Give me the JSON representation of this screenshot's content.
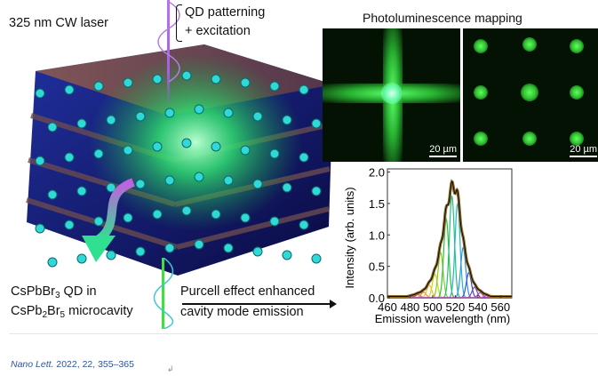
{
  "figure": {
    "laser_label": "325 nm CW laser",
    "qd_label_line1": "QD patterning",
    "qd_label_line2": "+ excitation",
    "material_line1_a": "CsPbBr",
    "material_line1_sub": "3",
    "material_line1_b": " QD in",
    "material_line2_a": "CsPb",
    "material_line2_sub1": "2",
    "material_line2_b": "Br",
    "material_line2_sub2": "5",
    "material_line2_c": " microcavity",
    "purcell_line1": "Purcell effect enhanced",
    "purcell_line2": "cavity mode emission",
    "pl_title": "Photoluminescence mapping",
    "scale_bar_left": "20 µm",
    "scale_bar_right": "20 µm"
  },
  "citation": {
    "journal": "Nano Lett.",
    "details": "2022, 22, 355–365"
  },
  "chart_data": {
    "type": "line",
    "title": "",
    "xlabel": "Emission wavelength (nm)",
    "ylabel": "Intensity (arb. units)",
    "xlim": [
      460,
      570
    ],
    "ylim": [
      0,
      2.05
    ],
    "xticks": [
      460,
      480,
      500,
      520,
      540,
      560
    ],
    "yticks": [
      0.0,
      0.5,
      1.0,
      1.5,
      2.0
    ],
    "grid": false,
    "mode_width_nm": 2.2,
    "modes": [
      {
        "center": 482,
        "amplitude": 0.02,
        "color": "#e03030"
      },
      {
        "center": 487,
        "amplitude": 0.05,
        "color": "#f05050"
      },
      {
        "center": 492,
        "amplitude": 0.09,
        "color": "#ff8040"
      },
      {
        "center": 497,
        "amplitude": 0.2,
        "color": "#f0c020"
      },
      {
        "center": 502,
        "amplitude": 0.38,
        "color": "#c8d820"
      },
      {
        "center": 507,
        "amplitude": 0.72,
        "color": "#80d020"
      },
      {
        "center": 512,
        "amplitude": 1.25,
        "color": "#30c030"
      },
      {
        "center": 517,
        "amplitude": 1.62,
        "color": "#20c080"
      },
      {
        "center": 522,
        "amplitude": 1.5,
        "color": "#20b8c8"
      },
      {
        "center": 527,
        "amplitude": 0.8,
        "color": "#3090e0"
      },
      {
        "center": 532,
        "amplitude": 0.4,
        "color": "#3050d0"
      },
      {
        "center": 537,
        "amplitude": 0.17,
        "color": "#8040d0"
      },
      {
        "center": 542,
        "amplitude": 0.08,
        "color": "#c040c0"
      },
      {
        "center": 547,
        "amplitude": 0.03,
        "color": "#c060a0"
      }
    ],
    "series": [
      {
        "name": "measured spectrum",
        "color": "#8b6a2a"
      },
      {
        "name": "fit envelope",
        "color": "#000000"
      }
    ]
  }
}
